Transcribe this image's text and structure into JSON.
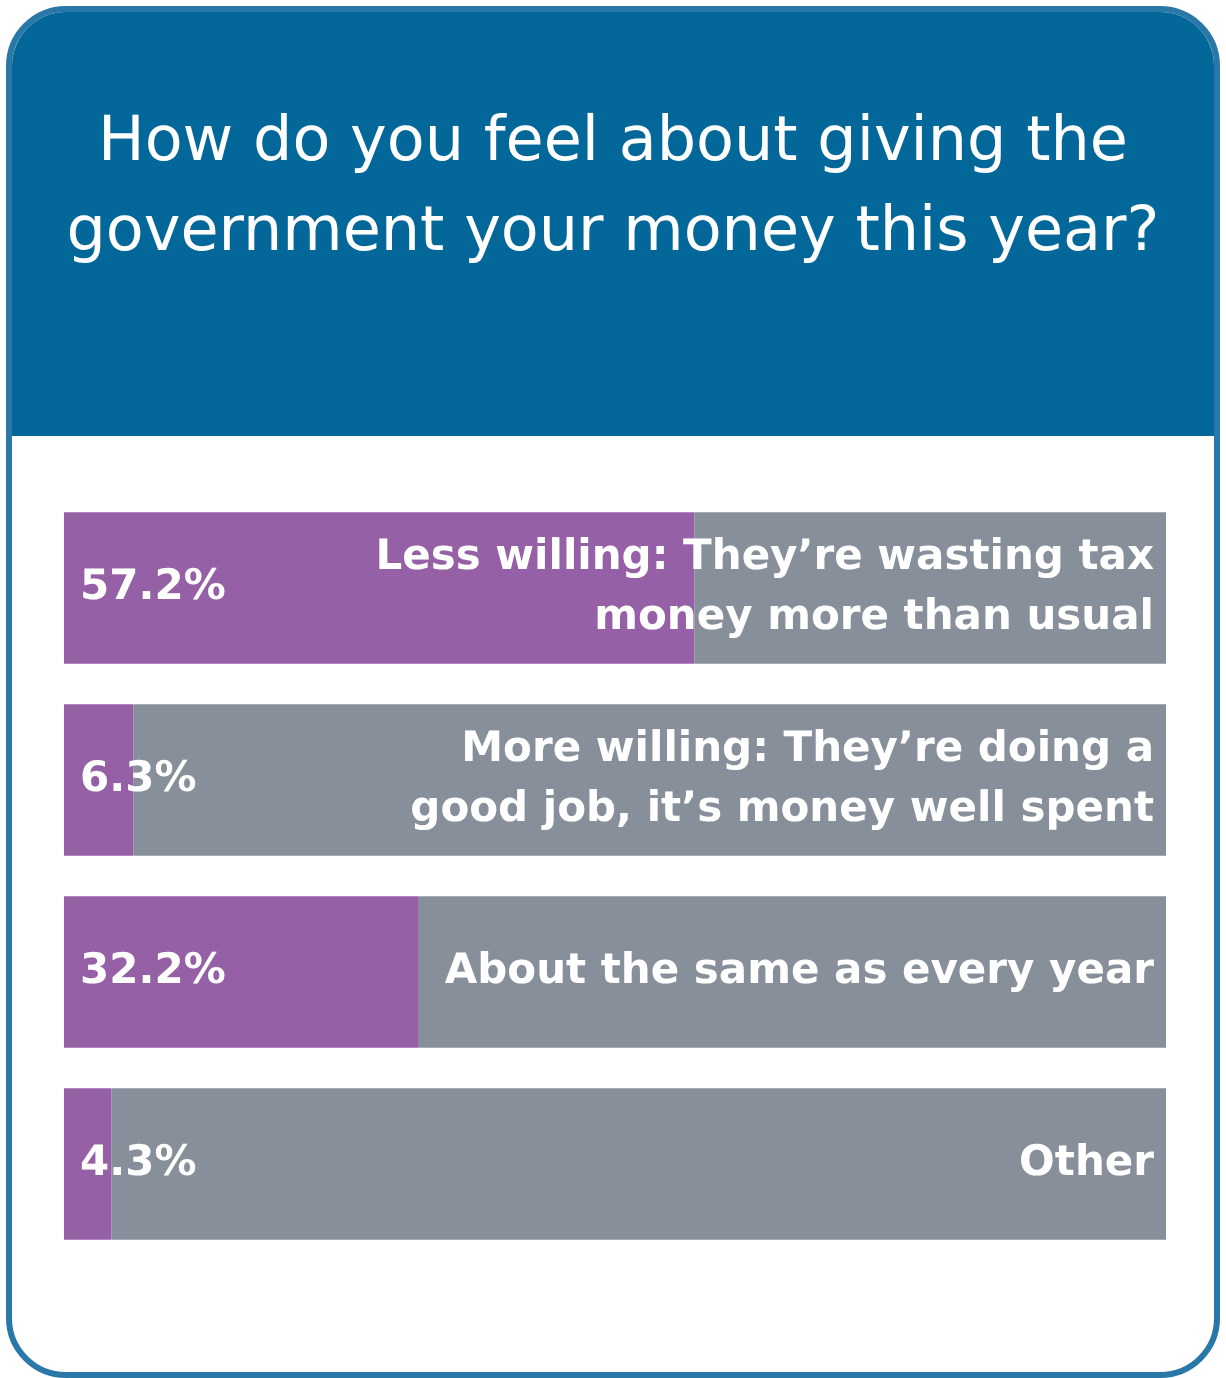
{
  "chart_data": {
    "type": "bar",
    "orientation": "horizontal",
    "stacked": true,
    "title": "How do you feel about giving the government your money this year?",
    "categories": [
      "Less willing: They’re wasting tax money more than usual",
      "More willing: They’re doing a good job, it’s money well spent",
      "About the same as every year",
      "Other"
    ],
    "series": [
      {
        "color": "#9660a6",
        "values": [
          57.2,
          6.3,
          32.2,
          4.3
        ],
        "value_labels": [
          "57.2%",
          "6.3%",
          "32.2%",
          "4.3%"
        ]
      },
      {
        "color": "#87909a",
        "values": [
          42.8,
          93.7,
          67.8,
          95.7
        ]
      }
    ],
    "xlim": [
      0,
      100
    ],
    "tick_labels": "y",
    "legend": false
  }
}
